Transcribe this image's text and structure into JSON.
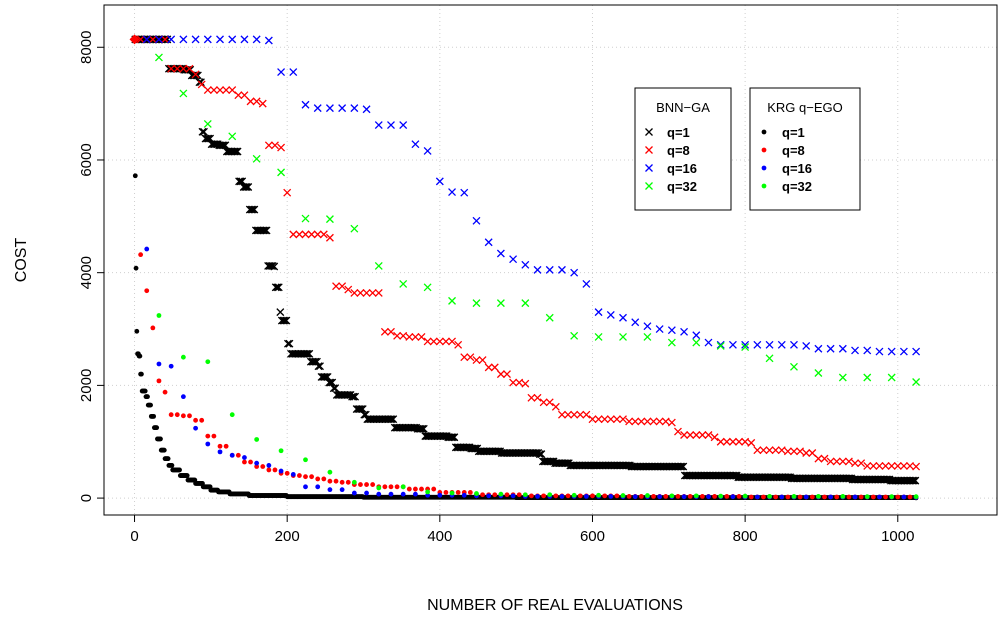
{
  "chart_data": {
    "type": "scatter",
    "xlabel": "NUMBER OF REAL EVALUATIONS",
    "ylabel": "COST",
    "xlim": [
      -40,
      1130
    ],
    "ylim": [
      -300,
      8750
    ],
    "xticks": [
      0,
      200,
      400,
      600,
      800,
      1000
    ],
    "yticks": [
      0,
      2000,
      4000,
      6000,
      8000
    ],
    "grid": true,
    "start_point": {
      "x": 0,
      "y": 8140,
      "color": "#ff0000"
    },
    "legends": [
      {
        "title": "BNN−GA",
        "marker": "cross",
        "entries": [
          {
            "label": "q=1",
            "color": "#000000"
          },
          {
            "label": "q=8",
            "color": "#ff0000"
          },
          {
            "label": "q=16",
            "color": "#0000ff"
          },
          {
            "label": "q=32",
            "color": "#00ff00"
          }
        ]
      },
      {
        "title": "KRG q−EGO",
        "marker": "dot",
        "entries": [
          {
            "label": "q=1",
            "color": "#000000"
          },
          {
            "label": "q=8",
            "color": "#ff0000"
          },
          {
            "label": "q=16",
            "color": "#0000ff"
          },
          {
            "label": "q=32",
            "color": "#00ff00"
          }
        ]
      }
    ],
    "series": [
      {
        "method": "BNN-GA",
        "q": 1,
        "marker": "cross",
        "color": "#000000",
        "step": 2,
        "x_start": 1,
        "x_end": 1024,
        "breakpoints": [
          [
            1,
            8140
          ],
          [
            40,
            8140
          ],
          [
            45,
            7620
          ],
          [
            65,
            7600
          ],
          [
            75,
            7500
          ],
          [
            85,
            7380
          ],
          [
            88,
            6500
          ],
          [
            92,
            6380
          ],
          [
            100,
            6280
          ],
          [
            110,
            6260
          ],
          [
            120,
            6150
          ],
          [
            135,
            6150
          ],
          [
            137,
            5620
          ],
          [
            142,
            5520
          ],
          [
            150,
            5120
          ],
          [
            158,
            4750
          ],
          [
            172,
            4750
          ],
          [
            174,
            4120
          ],
          [
            182,
            4110
          ],
          [
            185,
            3740
          ],
          [
            190,
            3300
          ],
          [
            193,
            3150
          ],
          [
            200,
            2740
          ],
          [
            205,
            2560
          ],
          [
            225,
            2560
          ],
          [
            230,
            2420
          ],
          [
            240,
            2340
          ],
          [
            245,
            2150
          ],
          [
            255,
            2050
          ],
          [
            260,
            1950
          ],
          [
            265,
            1830
          ],
          [
            285,
            1800
          ],
          [
            290,
            1580
          ],
          [
            300,
            1480
          ],
          [
            305,
            1400
          ],
          [
            335,
            1400
          ],
          [
            340,
            1250
          ],
          [
            370,
            1230
          ],
          [
            380,
            1100
          ],
          [
            410,
            1080
          ],
          [
            420,
            900
          ],
          [
            440,
            880
          ],
          [
            450,
            830
          ],
          [
            475,
            830
          ],
          [
            480,
            800
          ],
          [
            530,
            780
          ],
          [
            535,
            650
          ],
          [
            550,
            620
          ],
          [
            570,
            580
          ],
          [
            650,
            560
          ],
          [
            700,
            560
          ],
          [
            720,
            400
          ],
          [
            790,
            370
          ],
          [
            860,
            350
          ],
          [
            940,
            330
          ],
          [
            990,
            310
          ],
          [
            1024,
            270
          ]
        ]
      },
      {
        "method": "BNN-GA",
        "q": 8,
        "marker": "cross",
        "color": "#ff0000",
        "step": 8,
        "x_start": 8,
        "x_end": 1024,
        "breakpoints": [
          [
            8,
            8140
          ],
          [
            40,
            8140
          ],
          [
            48,
            7620
          ],
          [
            70,
            7620
          ],
          [
            80,
            7520
          ],
          [
            88,
            7340
          ],
          [
            96,
            7240
          ],
          [
            120,
            7240
          ],
          [
            135,
            7150
          ],
          [
            152,
            7040
          ],
          [
            168,
            7000
          ],
          [
            176,
            6260
          ],
          [
            192,
            6220
          ],
          [
            200,
            5420
          ],
          [
            208,
            4680
          ],
          [
            256,
            4620
          ],
          [
            264,
            3760
          ],
          [
            280,
            3700
          ],
          [
            288,
            3640
          ],
          [
            320,
            3640
          ],
          [
            328,
            2950
          ],
          [
            344,
            2880
          ],
          [
            360,
            2860
          ],
          [
            384,
            2780
          ],
          [
            424,
            2720
          ],
          [
            432,
            2500
          ],
          [
            448,
            2450
          ],
          [
            464,
            2320
          ],
          [
            480,
            2200
          ],
          [
            496,
            2050
          ],
          [
            512,
            2030
          ],
          [
            520,
            1780
          ],
          [
            536,
            1700
          ],
          [
            552,
            1620
          ],
          [
            560,
            1480
          ],
          [
            584,
            1480
          ],
          [
            600,
            1400
          ],
          [
            648,
            1360
          ],
          [
            704,
            1340
          ],
          [
            712,
            1180
          ],
          [
            720,
            1120
          ],
          [
            760,
            1080
          ],
          [
            768,
            1000
          ],
          [
            808,
            980
          ],
          [
            816,
            850
          ],
          [
            856,
            830
          ],
          [
            880,
            800
          ],
          [
            896,
            700
          ],
          [
            912,
            650
          ],
          [
            944,
            620
          ],
          [
            960,
            570
          ],
          [
            1024,
            560
          ]
        ]
      },
      {
        "method": "BNN-GA",
        "q": 16,
        "marker": "cross",
        "color": "#0000ff",
        "step": 16,
        "x_start": 16,
        "x_end": 1024,
        "breakpoints": [
          [
            16,
            8140
          ],
          [
            160,
            8140
          ],
          [
            176,
            8120
          ],
          [
            192,
            7560
          ],
          [
            208,
            7560
          ],
          [
            224,
            6980
          ],
          [
            240,
            6920
          ],
          [
            304,
            6900
          ],
          [
            320,
            6620
          ],
          [
            352,
            6620
          ],
          [
            368,
            6280
          ],
          [
            384,
            6160
          ],
          [
            400,
            5620
          ],
          [
            416,
            5430
          ],
          [
            432,
            5420
          ],
          [
            448,
            4920
          ],
          [
            464,
            4540
          ],
          [
            480,
            4340
          ],
          [
            496,
            4240
          ],
          [
            512,
            4140
          ],
          [
            528,
            4050
          ],
          [
            576,
            4000
          ],
          [
            592,
            3800
          ],
          [
            608,
            3300
          ],
          [
            624,
            3250
          ],
          [
            640,
            3200
          ],
          [
            656,
            3120
          ],
          [
            672,
            3050
          ],
          [
            688,
            3000
          ],
          [
            704,
            2980
          ],
          [
            720,
            2950
          ],
          [
            736,
            2890
          ],
          [
            752,
            2760
          ],
          [
            768,
            2720
          ],
          [
            880,
            2700
          ],
          [
            896,
            2650
          ],
          [
            928,
            2650
          ],
          [
            944,
            2620
          ],
          [
            976,
            2600
          ],
          [
            1024,
            2600
          ]
        ]
      },
      {
        "method": "BNN-GA",
        "q": 32,
        "marker": "cross",
        "color": "#00ff00",
        "step": 32,
        "x_start": 32,
        "x_end": 1024,
        "breakpoints": [
          [
            32,
            7820
          ],
          [
            64,
            7180
          ],
          [
            96,
            6640
          ],
          [
            128,
            6420
          ],
          [
            160,
            6020
          ],
          [
            192,
            5780
          ],
          [
            224,
            4960
          ],
          [
            256,
            4950
          ],
          [
            288,
            4780
          ],
          [
            320,
            4120
          ],
          [
            352,
            3800
          ],
          [
            384,
            3740
          ],
          [
            416,
            3500
          ],
          [
            448,
            3460
          ],
          [
            480,
            3460
          ],
          [
            512,
            3460
          ],
          [
            544,
            3200
          ],
          [
            576,
            2880
          ],
          [
            608,
            2860
          ],
          [
            640,
            2860
          ],
          [
            672,
            2860
          ],
          [
            704,
            2760
          ],
          [
            736,
            2760
          ],
          [
            768,
            2700
          ],
          [
            800,
            2680
          ],
          [
            832,
            2480
          ],
          [
            864,
            2330
          ],
          [
            896,
            2220
          ],
          [
            928,
            2140
          ],
          [
            960,
            2140
          ],
          [
            992,
            2140
          ],
          [
            1024,
            2060
          ]
        ]
      },
      {
        "method": "KRG q-EGO",
        "q": 1,
        "marker": "dot",
        "color": "#000000",
        "step": 1,
        "x_start": 1,
        "x_end": 1024,
        "breakpoints": [
          [
            1,
            5720
          ],
          [
            2,
            4080
          ],
          [
            3,
            2960
          ],
          [
            4,
            2560
          ],
          [
            6,
            2520
          ],
          [
            8,
            2200
          ],
          [
            10,
            1900
          ],
          [
            15,
            1800
          ],
          [
            18,
            1650
          ],
          [
            22,
            1450
          ],
          [
            26,
            1250
          ],
          [
            30,
            1050
          ],
          [
            35,
            850
          ],
          [
            40,
            700
          ],
          [
            45,
            580
          ],
          [
            50,
            500
          ],
          [
            60,
            400
          ],
          [
            70,
            320
          ],
          [
            80,
            260
          ],
          [
            90,
            200
          ],
          [
            100,
            140
          ],
          [
            110,
            110
          ],
          [
            125,
            75
          ],
          [
            150,
            45
          ],
          [
            200,
            25
          ],
          [
            300,
            15
          ],
          [
            500,
            8
          ],
          [
            1024,
            4
          ]
        ]
      },
      {
        "method": "KRG q-EGO",
        "q": 8,
        "marker": "dot",
        "color": "#ff0000",
        "step": 8,
        "x_start": 8,
        "x_end": 1024,
        "breakpoints": [
          [
            8,
            4320
          ],
          [
            16,
            3680
          ],
          [
            24,
            3020
          ],
          [
            32,
            2080
          ],
          [
            40,
            1880
          ],
          [
            48,
            1480
          ],
          [
            64,
            1460
          ],
          [
            80,
            1380
          ],
          [
            96,
            1100
          ],
          [
            112,
            920
          ],
          [
            128,
            760
          ],
          [
            144,
            640
          ],
          [
            160,
            560
          ],
          [
            176,
            500
          ],
          [
            192,
            440
          ],
          [
            208,
            400
          ],
          [
            224,
            380
          ],
          [
            240,
            340
          ],
          [
            256,
            300
          ],
          [
            272,
            280
          ],
          [
            288,
            240
          ],
          [
            320,
            200
          ],
          [
            360,
            160
          ],
          [
            400,
            100
          ],
          [
            448,
            60
          ],
          [
            512,
            40
          ],
          [
            640,
            30
          ],
          [
            800,
            20
          ],
          [
            1024,
            15
          ]
        ]
      },
      {
        "method": "KRG q-EGO",
        "q": 16,
        "marker": "dot",
        "color": "#0000ff",
        "step": 16,
        "x_start": 16,
        "x_end": 1024,
        "breakpoints": [
          [
            16,
            4420
          ],
          [
            32,
            2380
          ],
          [
            48,
            2340
          ],
          [
            64,
            1800
          ],
          [
            80,
            1240
          ],
          [
            96,
            960
          ],
          [
            112,
            820
          ],
          [
            128,
            760
          ],
          [
            144,
            720
          ],
          [
            160,
            620
          ],
          [
            176,
            580
          ],
          [
            192,
            480
          ],
          [
            208,
            420
          ],
          [
            224,
            200
          ],
          [
            256,
            150
          ],
          [
            288,
            90
          ],
          [
            320,
            70
          ],
          [
            384,
            50
          ],
          [
            448,
            40
          ],
          [
            512,
            30
          ],
          [
            640,
            25
          ],
          [
            800,
            20
          ],
          [
            1024,
            15
          ]
        ]
      },
      {
        "method": "KRG q-EGO",
        "q": 32,
        "marker": "dot",
        "color": "#00ff00",
        "step": 32,
        "x_start": 32,
        "x_end": 1024,
        "breakpoints": [
          [
            32,
            3240
          ],
          [
            64,
            2500
          ],
          [
            96,
            2420
          ],
          [
            128,
            1480
          ],
          [
            160,
            1040
          ],
          [
            192,
            840
          ],
          [
            224,
            680
          ],
          [
            256,
            460
          ],
          [
            288,
            280
          ],
          [
            320,
            180
          ],
          [
            352,
            200
          ],
          [
            384,
            110
          ],
          [
            416,
            90
          ],
          [
            448,
            80
          ],
          [
            480,
            70
          ],
          [
            512,
            60
          ],
          [
            576,
            50
          ],
          [
            640,
            45
          ],
          [
            704,
            40
          ],
          [
            768,
            35
          ],
          [
            832,
            30
          ],
          [
            896,
            30
          ],
          [
            960,
            25
          ],
          [
            1024,
            25
          ]
        ]
      }
    ]
  }
}
